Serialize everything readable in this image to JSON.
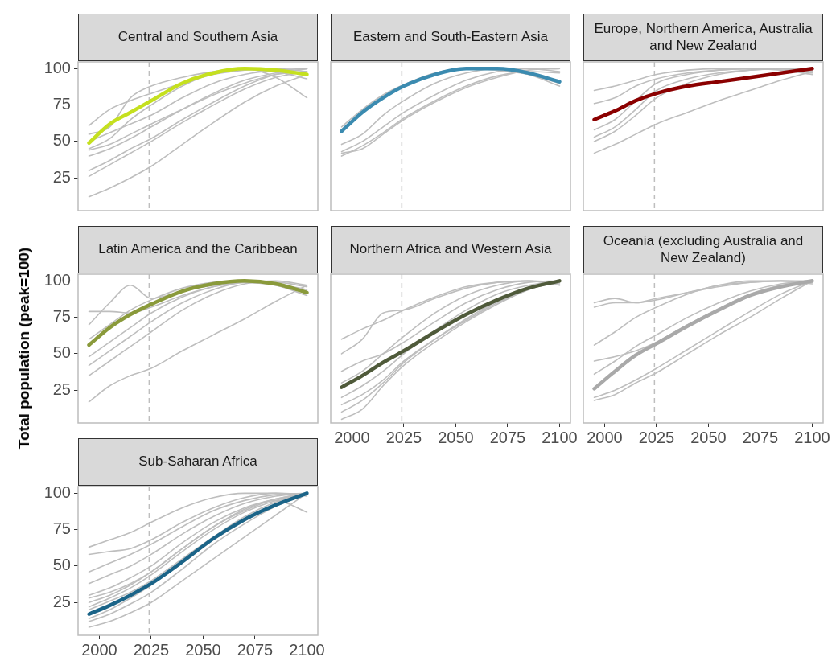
{
  "chart_data": [
    {
      "type": "line",
      "title": "Central and Southern Asia",
      "x": [
        1995,
        2005,
        2015,
        2025,
        2040,
        2055,
        2070,
        2085,
        2100
      ],
      "xlim": [
        1989.75,
        2105.25
      ],
      "xticks": [
        2000,
        2025,
        2050,
        2075,
        2100
      ],
      "ylim": [
        2.5,
        104.6
      ],
      "yticks": [
        25,
        50,
        75,
        100
      ],
      "tick_labels": "y",
      "ref_lines": [
        {
          "axis": "x",
          "value": 2024,
          "color": "#bebebe",
          "line_style": "dashed"
        }
      ],
      "series": [
        {
          "color": "#c5e01f",
          "values": [
            49,
            62,
            70,
            78,
            90,
            97,
            100,
            99,
            96
          ]
        },
        {
          "color": "#bebebe",
          "values": [
            61,
            72,
            78,
            83,
            90,
            96,
            99,
            100,
            98
          ]
        },
        {
          "color": "#bebebe",
          "values": [
            55,
            60,
            80,
            88,
            94,
            98,
            100,
            98,
            93
          ]
        },
        {
          "color": "#bebebe",
          "values": [
            44,
            48,
            55,
            62,
            72,
            82,
            90,
            96,
            98
          ]
        },
        {
          "color": "#bebebe",
          "values": [
            40,
            45,
            52,
            60,
            72,
            83,
            92,
            97,
            100
          ]
        },
        {
          "color": "#bebebe",
          "values": [
            30,
            37,
            45,
            52,
            65,
            77,
            88,
            96,
            100
          ]
        },
        {
          "color": "#bebebe",
          "values": [
            26,
            34,
            42,
            50,
            63,
            75,
            86,
            94,
            98
          ]
        },
        {
          "color": "#bebebe",
          "values": [
            12,
            18,
            25,
            33,
            48,
            63,
            77,
            88,
            96
          ]
        },
        {
          "color": "#bebebe",
          "values": [
            45,
            52,
            65,
            75,
            88,
            97,
            100,
            94,
            80
          ]
        },
        {
          "color": "#bebebe",
          "values": [
            50,
            56,
            62,
            68,
            80,
            90,
            96,
            99,
            100
          ]
        }
      ]
    },
    {
      "type": "line",
      "title": "Eastern and South-Eastern Asia",
      "x": [
        1995,
        2005,
        2015,
        2025,
        2040,
        2055,
        2070,
        2085,
        2100
      ],
      "xlim": [
        1989.75,
        2105.25
      ],
      "xticks": [
        2000,
        2025,
        2050,
        2075,
        2100
      ],
      "ylim": [
        2.5,
        104.6
      ],
      "yticks": [
        25,
        50,
        75,
        100
      ],
      "tick_labels": false,
      "ref_lines": [
        {
          "axis": "x",
          "value": 2024,
          "color": "#bebebe",
          "line_style": "dashed"
        }
      ],
      "series": [
        {
          "color": "#3b8bb0",
          "values": [
            57,
            70,
            80,
            88,
            96,
            100,
            100,
            97,
            91
          ]
        },
        {
          "color": "#bebebe",
          "values": [
            60,
            72,
            82,
            89,
            97,
            100,
            99,
            96,
            90
          ]
        },
        {
          "color": "#bebebe",
          "values": [
            43,
            50,
            60,
            70,
            82,
            92,
            98,
            100,
            98
          ]
        },
        {
          "color": "#bebebe",
          "values": [
            42,
            45,
            55,
            65,
            77,
            87,
            94,
            99,
            100
          ]
        },
        {
          "color": "#bebebe",
          "values": [
            48,
            55,
            68,
            78,
            90,
            97,
            100,
            96,
            88
          ]
        },
        {
          "color": "#bebebe",
          "values": [
            40,
            47,
            56,
            66,
            78,
            88,
            95,
            98,
            97
          ]
        }
      ]
    },
    {
      "type": "line",
      "title": "Europe, Northern America, Australia and New Zealand",
      "x": [
        1995,
        2005,
        2015,
        2025,
        2040,
        2055,
        2070,
        2085,
        2100
      ],
      "xlim": [
        1989.75,
        2105.25
      ],
      "xticks": [
        2000,
        2025,
        2050,
        2075,
        2100
      ],
      "ylim": [
        2.5,
        104.6
      ],
      "yticks": [
        25,
        50,
        75,
        100
      ],
      "tick_labels": false,
      "ref_lines": [
        {
          "axis": "x",
          "value": 2024,
          "color": "#bebebe",
          "line_style": "dashed"
        }
      ],
      "series": [
        {
          "color": "#8b0000",
          "values": [
            65,
            71,
            78,
            83,
            88,
            91,
            94,
            97,
            100
          ]
        },
        {
          "color": "#bebebe",
          "values": [
            85,
            88,
            92,
            96,
            99,
            100,
            100,
            99,
            96
          ]
        },
        {
          "color": "#bebebe",
          "values": [
            76,
            80,
            88,
            93,
            97,
            99,
            100,
            100,
            98
          ]
        },
        {
          "color": "#bebebe",
          "values": [
            58,
            65,
            78,
            90,
            96,
            99,
            100,
            100,
            97
          ]
        },
        {
          "color": "#bebebe",
          "values": [
            53,
            60,
            72,
            85,
            93,
            97,
            99,
            100,
            99
          ]
        },
        {
          "color": "#bebebe",
          "values": [
            42,
            48,
            55,
            62,
            70,
            78,
            85,
            92,
            98
          ]
        },
        {
          "color": "#bebebe",
          "values": [
            50,
            57,
            68,
            80,
            90,
            96,
            99,
            100,
            100
          ]
        }
      ]
    },
    {
      "type": "line",
      "title": "Latin America and the Caribbean",
      "ylabel": "Total population (peak=100)",
      "x": [
        1995,
        2005,
        2015,
        2025,
        2040,
        2055,
        2070,
        2085,
        2100
      ],
      "xlim": [
        1989.75,
        2105.25
      ],
      "xticks": [
        2000,
        2025,
        2050,
        2075,
        2100
      ],
      "ylim": [
        2.5,
        104.6
      ],
      "yticks": [
        25,
        50,
        75,
        100
      ],
      "tick_labels": "y",
      "ref_lines": [
        {
          "axis": "x",
          "value": 2024,
          "color": "#bebebe",
          "line_style": "dashed"
        }
      ],
      "series": [
        {
          "color": "#8a9a3b",
          "values": [
            56,
            68,
            77,
            84,
            93,
            98,
            100,
            98,
            92
          ]
        },
        {
          "color": "#bebebe",
          "values": [
            70,
            85,
            97,
            88,
            93,
            97,
            99,
            97,
            92
          ]
        },
        {
          "color": "#bebebe",
          "values": [
            79,
            79,
            78,
            82,
            90,
            96,
            99,
            98,
            94
          ]
        },
        {
          "color": "#bebebe",
          "values": [
            17,
            28,
            35,
            40,
            52,
            63,
            74,
            86,
            97
          ]
        },
        {
          "color": "#bebebe",
          "values": [
            48,
            58,
            68,
            78,
            89,
            96,
            99,
            98,
            93
          ]
        },
        {
          "color": "#bebebe",
          "values": [
            42,
            52,
            62,
            72,
            85,
            94,
            99,
            99,
            96
          ]
        },
        {
          "color": "#bebebe",
          "values": [
            35,
            45,
            55,
            65,
            80,
            91,
            98,
            100,
            97
          ]
        },
        {
          "color": "#bebebe",
          "values": [
            60,
            70,
            80,
            87,
            95,
            99,
            100,
            97,
            90
          ]
        }
      ]
    },
    {
      "type": "line",
      "title": "Northern Africa and Western Asia",
      "x": [
        1995,
        2005,
        2015,
        2025,
        2040,
        2055,
        2070,
        2085,
        2100
      ],
      "xlim": [
        1989.75,
        2105.25
      ],
      "xticks": [
        2000,
        2025,
        2050,
        2075,
        2100
      ],
      "ylim": [
        2.5,
        104.6
      ],
      "yticks": [
        25,
        50,
        75,
        100
      ],
      "tick_labels": "x",
      "ref_lines": [
        {
          "axis": "x",
          "value": 2024,
          "color": "#bebebe",
          "line_style": "dashed"
        }
      ],
      "series": [
        {
          "color": "#4f5a3a",
          "values": [
            27,
            35,
            44,
            52,
            65,
            77,
            87,
            95,
            100
          ]
        },
        {
          "color": "#bebebe",
          "values": [
            60,
            67,
            73,
            80,
            89,
            96,
            99,
            100,
            98
          ]
        },
        {
          "color": "#bebebe",
          "values": [
            50,
            60,
            78,
            80,
            88,
            95,
            99,
            100,
            99
          ]
        },
        {
          "color": "#bebebe",
          "values": [
            38,
            45,
            50,
            58,
            72,
            85,
            94,
            99,
            100
          ]
        },
        {
          "color": "#bebebe",
          "values": [
            20,
            28,
            38,
            50,
            66,
            80,
            91,
            97,
            100
          ]
        },
        {
          "color": "#bebebe",
          "values": [
            10,
            18,
            30,
            44,
            60,
            74,
            86,
            95,
            100
          ]
        },
        {
          "color": "#bebebe",
          "values": [
            5,
            12,
            28,
            42,
            58,
            72,
            84,
            94,
            100
          ]
        },
        {
          "color": "#bebebe",
          "values": [
            30,
            38,
            50,
            62,
            78,
            90,
            97,
            100,
            97
          ]
        },
        {
          "color": "#bebebe",
          "values": [
            15,
            22,
            32,
            45,
            60,
            73,
            85,
            94,
            100
          ]
        }
      ]
    },
    {
      "type": "line",
      "title": "Oceania (excluding Australia and New Zealand)",
      "x": [
        1995,
        2005,
        2015,
        2025,
        2040,
        2055,
        2070,
        2085,
        2100
      ],
      "xlim": [
        1989.75,
        2105.25
      ],
      "xticks": [
        2000,
        2025,
        2050,
        2075,
        2100
      ],
      "ylim": [
        2.5,
        104.6
      ],
      "yticks": [
        25,
        50,
        75,
        100
      ],
      "tick_labels": "x",
      "ref_lines": [
        {
          "axis": "x",
          "value": 2024,
          "color": "#bebebe",
          "line_style": "dashed"
        }
      ],
      "series": [
        {
          "color": "#a9a9a9",
          "values": [
            26,
            38,
            49,
            57,
            69,
            80,
            90,
            96,
            100
          ]
        },
        {
          "color": "#bebebe",
          "values": [
            85,
            88,
            85,
            88,
            92,
            96,
            99,
            100,
            99
          ]
        },
        {
          "color": "#bebebe",
          "values": [
            82,
            85,
            85,
            87,
            92,
            97,
            100,
            100,
            98
          ]
        },
        {
          "color": "#bebebe",
          "values": [
            56,
            65,
            75,
            82,
            91,
            97,
            99,
            100,
            100
          ]
        },
        {
          "color": "#bebebe",
          "values": [
            45,
            48,
            52,
            58,
            70,
            81,
            91,
            97,
            100
          ]
        },
        {
          "color": "#bebebe",
          "values": [
            36,
            45,
            55,
            63,
            75,
            85,
            93,
            98,
            100
          ]
        },
        {
          "color": "#bebebe",
          "values": [
            20,
            25,
            32,
            40,
            53,
            66,
            79,
            91,
            100
          ]
        },
        {
          "color": "#bebebe",
          "values": [
            18,
            22,
            30,
            37,
            50,
            63,
            75,
            88,
            100
          ]
        }
      ]
    },
    {
      "type": "line",
      "title": "Sub-Saharan Africa",
      "x": [
        1995,
        2005,
        2015,
        2025,
        2040,
        2055,
        2070,
        2085,
        2100
      ],
      "xlim": [
        1989.75,
        2105.25
      ],
      "xticks": [
        2000,
        2025,
        2050,
        2075,
        2100
      ],
      "ylim": [
        2.5,
        104.6
      ],
      "yticks": [
        25,
        50,
        75,
        100
      ],
      "ref_lines": [
        {
          "axis": "x",
          "value": 2024,
          "color": "#bebebe",
          "line_style": "dashed"
        }
      ],
      "series": [
        {
          "color": "#1b6488",
          "values": [
            17,
            23,
            30,
            38,
            53,
            69,
            82,
            92,
            100
          ]
        },
        {
          "color": "#bebebe",
          "values": [
            63,
            68,
            73,
            80,
            90,
            97,
            100,
            100,
            99
          ]
        },
        {
          "color": "#bebebe",
          "values": [
            58,
            60,
            62,
            68,
            80,
            90,
            97,
            100,
            98
          ]
        },
        {
          "color": "#bebebe",
          "values": [
            46,
            52,
            58,
            65,
            77,
            88,
            95,
            99,
            100
          ]
        },
        {
          "color": "#bebebe",
          "values": [
            38,
            44,
            50,
            58,
            72,
            84,
            93,
            98,
            100
          ]
        },
        {
          "color": "#bebebe",
          "values": [
            28,
            32,
            38,
            46,
            62,
            77,
            88,
            96,
            100
          ]
        },
        {
          "color": "#bebebe",
          "values": [
            22,
            28,
            35,
            44,
            60,
            75,
            87,
            95,
            100
          ]
        },
        {
          "color": "#bebebe",
          "values": [
            12,
            17,
            24,
            32,
            48,
            65,
            79,
            91,
            100
          ]
        },
        {
          "color": "#bebebe",
          "values": [
            8,
            12,
            18,
            25,
            40,
            55,
            70,
            85,
            100
          ]
        },
        {
          "color": "#bebebe",
          "values": [
            20,
            26,
            32,
            40,
            55,
            70,
            84,
            94,
            100
          ]
        },
        {
          "color": "#bebebe",
          "values": [
            30,
            35,
            42,
            50,
            66,
            80,
            90,
            96,
            100
          ]
        },
        {
          "color": "#bebebe",
          "values": [
            14,
            20,
            28,
            37,
            52,
            68,
            81,
            92,
            100
          ]
        },
        {
          "color": "#bebebe",
          "values": [
            25,
            30,
            37,
            46,
            62,
            77,
            89,
            95,
            87
          ]
        }
      ]
    }
  ]
}
